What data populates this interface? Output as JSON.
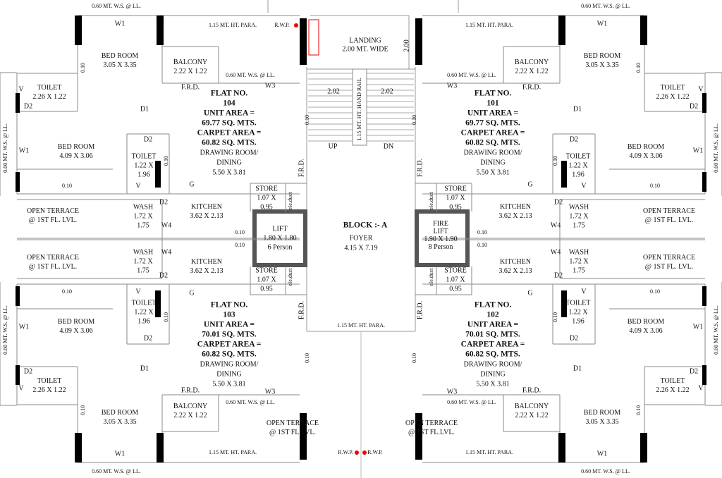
{
  "block": {
    "title": "BLOCK :- A",
    "foyer": [
      "FOYER",
      "4.15 X 7.19"
    ]
  },
  "lift": [
    "LIFT",
    "1.80 X 1.80",
    "6 Person"
  ],
  "fire_lift": [
    "FIRE",
    "LIFT",
    "1.90 X 1.90",
    "8 Person"
  ],
  "landing": [
    "LANDING",
    "2.00 MT. WIDE"
  ],
  "landing_dim": "2.00",
  "stair": {
    "left_dim": "2.02",
    "right_dim": "2.02",
    "up": "UP",
    "dn": "DN",
    "hand_rail": "1.15 MT. HT. HAND RAIL"
  },
  "rwp": [
    "R.W.P.",
    "R.W.P.",
    "R.W.P."
  ],
  "center_para": "1.15 MT. HT. PARA.",
  "front_terrace": [
    [
      "OPEN TERRACE",
      "@ 1ST FL.LVL."
    ],
    [
      "OPEN TERRACE",
      "@ 1ST FL.LVL."
    ]
  ],
  "flats": [
    {
      "flat_no": "FLAT NO.",
      "number": "104",
      "unit_area_label": "UNIT AREA =",
      "unit_area": "69.77 SQ. MTS.",
      "carpet_area_label": "CARPET AREA =",
      "carpet_area": "60.82 SQ. MTS.",
      "drawing_room": [
        "DRAWING ROOM/",
        "DINING",
        "5.50 X 3.81"
      ],
      "bed_room_1": [
        "BED ROOM",
        "3.05 X 3.35"
      ],
      "bed_room_2": [
        "BED ROOM",
        "4.09 X 3.06"
      ],
      "toilet_1": [
        "TOILET",
        "2.26 X 1.22"
      ],
      "toilet_2": [
        "TOILET",
        "1.22 X",
        "1.96"
      ],
      "balcony": [
        "BALCONY",
        "2.22 X 1.22"
      ],
      "kitchen": [
        "KITCHEN",
        "3.62 X 2.13"
      ],
      "wash": [
        "WASH",
        "1.72 X",
        "1.75"
      ],
      "open_terrace": [
        "OPEN TERRACE",
        "@ 1ST FL. LVL."
      ],
      "store": [
        "STORE",
        "1.07 X",
        "0.95"
      ],
      "openings": [
        "W1",
        "W3",
        "F.R.D.",
        "V",
        "D2",
        "D1",
        "D2",
        "W1",
        "V",
        "G",
        "D2",
        "W4",
        "F.R.D."
      ],
      "dimensions": [
        "0.10",
        "0.10",
        "0.10",
        "0.10",
        "0.10"
      ],
      "notes": [
        "0.60 MT. W.S. @ LL.",
        "0.60 MT. W.S. @ LL.",
        "0.60 MT. W.S. @ LL.",
        "1.15 MT. HT. PARA.",
        "ele.duct"
      ]
    },
    {
      "flat_no": "FLAT NO.",
      "number": "101",
      "unit_area_label": "UNIT AREA =",
      "unit_area": "69.77 SQ. MTS.",
      "carpet_area_label": "CARPET AREA =",
      "carpet_area": "60.82 SQ. MTS.",
      "drawing_room": [
        "DRAWING ROOM/",
        "DINING",
        "5.50 X 3.81"
      ],
      "bed_room_1": [
        "BED ROOM",
        "3.05 X 3.35"
      ],
      "bed_room_2": [
        "BED ROOM",
        "4.09 X 3.06"
      ],
      "toilet_1": [
        "TOILET",
        "2.26 X 1.22"
      ],
      "toilet_2": [
        "TOILET",
        "1.22 X",
        "1.96"
      ],
      "balcony": [
        "BALCONY",
        "2.22 X 1.22"
      ],
      "kitchen": [
        "KITCHEN",
        "3.62 X 2.13"
      ],
      "wash": [
        "WASH",
        "1.72 X",
        "1.75"
      ],
      "open_terrace": [
        "OPEN TERRACE",
        "@ 1ST FL. LVL."
      ],
      "store": [
        "STORE",
        "1.07 X",
        "0.95"
      ],
      "openings": [
        "W1",
        "W3",
        "F.R.D.",
        "V",
        "D2",
        "D1",
        "D2",
        "W1",
        "V",
        "G",
        "D2",
        "W4",
        "F.R.D."
      ],
      "dimensions": [
        "0.10",
        "0.10",
        "0.10",
        "0.10",
        "0.10"
      ],
      "notes": [
        "0.60 MT. W.S. @ LL.",
        "0.60 MT. W.S. @ LL.",
        "0.60 MT. W.S. @ LL.",
        "1.15 MT. HT. PARA.",
        "ele.duct"
      ]
    },
    {
      "flat_no": "FLAT NO.",
      "number": "103",
      "unit_area_label": "UNIT AREA =",
      "unit_area": "70.01 SQ. MTS.",
      "carpet_area_label": "CARPET AREA =",
      "carpet_area": "60.82 SQ. MTS.",
      "drawing_room": [
        "DRAWING ROOM/",
        "DINING",
        "5.50 X 3.81"
      ],
      "bed_room_1": [
        "BED ROOM",
        "3.05 X 3.35"
      ],
      "bed_room_2": [
        "BED ROOM",
        "4.09 X 3.06"
      ],
      "toilet_1": [
        "TOILET",
        "2.26 X 1.22"
      ],
      "toilet_2": [
        "TOILET",
        "1.22 X",
        "1.96"
      ],
      "balcony": [
        "BALCONY",
        "2.22 X 1.22"
      ],
      "kitchen": [
        "KITCHEN",
        "3.62 X 2.13"
      ],
      "wash": [
        "WASH",
        "1.72 X",
        "1.75"
      ],
      "open_terrace": [
        "OPEN TERRACE",
        "@ 1ST FL. LVL."
      ],
      "store": [
        "STORE",
        "1.07 X",
        "0.95"
      ],
      "openings": [
        "W1",
        "W3",
        "F.R.D.",
        "V",
        "D2",
        "D1",
        "D2",
        "W1",
        "V",
        "G",
        "D2",
        "W4",
        "F.R.D."
      ],
      "dimensions": [
        "0.10",
        "0.10",
        "0.10",
        "0.10",
        "0.10"
      ],
      "notes": [
        "0.60 MT. W.S. @ LL.",
        "0.60 MT. W.S. @ LL.",
        "0.60 MT. W.S. @ LL.",
        "1.15 MT. HT. PARA.",
        "ele.duct"
      ]
    },
    {
      "flat_no": "FLAT NO.",
      "number": "102",
      "unit_area_label": "UNIT AREA =",
      "unit_area": "70.01 SQ. MTS.",
      "carpet_area_label": "CARPET AREA =",
      "carpet_area": "60.82 SQ. MTS.",
      "drawing_room": [
        "DRAWING ROOM/",
        "DINING",
        "5.50 X 3.81"
      ],
      "bed_room_1": [
        "BED ROOM",
        "3.05 X 3.35"
      ],
      "bed_room_2": [
        "BED ROOM",
        "4.09 X 3.06"
      ],
      "toilet_1": [
        "TOILET",
        "2.26 X 1.22"
      ],
      "toilet_2": [
        "TOILET",
        "1.22 X",
        "1.96"
      ],
      "balcony": [
        "BALCONY",
        "2.22 X 1.22"
      ],
      "kitchen": [
        "KITCHEN",
        "3.62 X 2.13"
      ],
      "wash": [
        "WASH",
        "1.72 X",
        "1.75"
      ],
      "open_terrace": [
        "OPEN TERRACE",
        "@ 1ST FL. LVL."
      ],
      "store": [
        "STORE",
        "1.07 X",
        "0.95"
      ],
      "openings": [
        "W1",
        "W3",
        "F.R.D.",
        "V",
        "D2",
        "D1",
        "D2",
        "W1",
        "V",
        "G",
        "D2",
        "W4",
        "F.R.D."
      ],
      "dimensions": [
        "0.10",
        "0.10",
        "0.10",
        "0.10",
        "0.10"
      ],
      "notes": [
        "0.60 MT. W.S. @ LL.",
        "0.60 MT. W.S. @ LL.",
        "0.60 MT. W.S. @ LL.",
        "1.15 MT. HT. PARA.",
        "ele.duct"
      ]
    }
  ]
}
